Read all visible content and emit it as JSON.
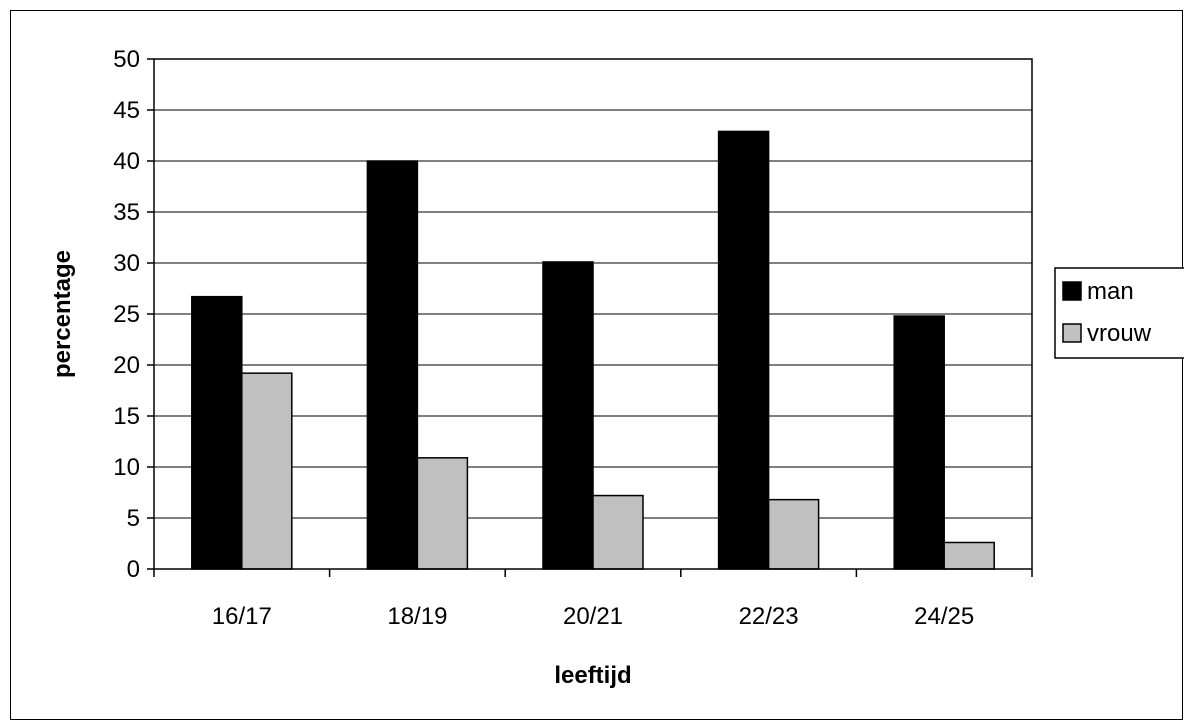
{
  "chart_data": {
    "type": "bar",
    "categories": [
      "16/17",
      "18/19",
      "20/21",
      "22/23",
      "24/25"
    ],
    "series": [
      {
        "name": "man",
        "values": [
          26.7,
          40.0,
          30.1,
          42.9,
          24.8
        ],
        "color": "#000000"
      },
      {
        "name": "vrouw",
        "values": [
          19.2,
          10.9,
          7.2,
          6.8,
          2.6
        ],
        "color": "#c0c0c0"
      }
    ],
    "xlabel": "leeftijd",
    "ylabel": "percentage",
    "ylim": [
      0,
      50
    ],
    "yticks": [
      "0",
      "5",
      "10",
      "15",
      "20",
      "25",
      "30",
      "35",
      "40",
      "45",
      "50"
    ],
    "grid": true,
    "legend_position": "right"
  }
}
